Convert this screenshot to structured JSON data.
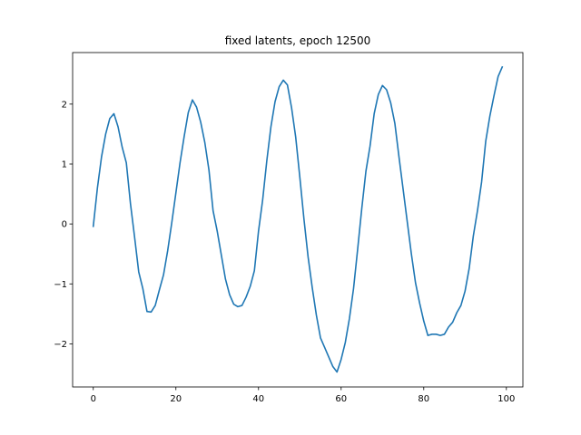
{
  "chart_data": {
    "type": "line",
    "title": "fixed latents, epoch 12500",
    "xlabel": "",
    "ylabel": "",
    "xlim": [
      -5,
      104
    ],
    "ylim": [
      -2.72,
      2.86
    ],
    "grid": false,
    "x_ticks": [
      0,
      20,
      40,
      60,
      80,
      100
    ],
    "y_ticks": [
      2,
      1,
      0,
      -1,
      -2
    ],
    "x_tick_labels": [
      "0",
      "20",
      "40",
      "60",
      "80",
      "100"
    ],
    "y_tick_labels": [
      "2",
      "1",
      "0",
      "−1",
      "−2"
    ],
    "series": [
      {
        "name": "",
        "color": "#1f77b4",
        "x": [
          0,
          1,
          2,
          3,
          4,
          5,
          6,
          7,
          8,
          9,
          10,
          11,
          12,
          13,
          14,
          15,
          16,
          17,
          18,
          19,
          20,
          21,
          22,
          23,
          24,
          25,
          26,
          27,
          28,
          29,
          30,
          31,
          32,
          33,
          34,
          35,
          36,
          37,
          38,
          39,
          40,
          41,
          42,
          43,
          44,
          45,
          46,
          47,
          48,
          49,
          50,
          51,
          52,
          53,
          54,
          55,
          56,
          57,
          58,
          59,
          60,
          61,
          62,
          63,
          64,
          65,
          66,
          67,
          68,
          69,
          70,
          71,
          72,
          73,
          74,
          75,
          76,
          77,
          78,
          79,
          80,
          81,
          82,
          83,
          84,
          85,
          86,
          87,
          88,
          89,
          90,
          91,
          92,
          93,
          94,
          95,
          96,
          97,
          98,
          99
        ],
        "values": [
          -0.04,
          0.6,
          1.12,
          1.5,
          1.76,
          1.84,
          1.62,
          1.28,
          1.02,
          0.34,
          -0.22,
          -0.8,
          -1.08,
          -1.46,
          -1.47,
          -1.36,
          -1.1,
          -0.85,
          -0.45,
          0.02,
          0.52,
          1.02,
          1.46,
          1.86,
          2.07,
          1.95,
          1.7,
          1.36,
          0.9,
          0.22,
          -0.12,
          -0.52,
          -0.92,
          -1.18,
          -1.34,
          -1.38,
          -1.36,
          -1.22,
          -1.04,
          -0.78,
          -0.12,
          0.4,
          1.05,
          1.62,
          2.04,
          2.29,
          2.4,
          2.32,
          1.94,
          1.45,
          0.78,
          0.08,
          -0.55,
          -1.06,
          -1.52,
          -1.9,
          -2.06,
          -2.22,
          -2.38,
          -2.47,
          -2.26,
          -1.98,
          -1.58,
          -1.08,
          -0.42,
          0.26,
          0.88,
          1.3,
          1.84,
          2.16,
          2.31,
          2.24,
          2.02,
          1.68,
          1.12,
          0.58,
          0.04,
          -0.5,
          -0.98,
          -1.32,
          -1.62,
          -1.86,
          -1.84,
          -1.84,
          -1.86,
          -1.84,
          -1.72,
          -1.64,
          -1.48,
          -1.36,
          -1.12,
          -0.74,
          -0.2,
          0.22,
          0.7,
          1.38,
          1.8,
          2.14,
          2.46,
          2.62
        ]
      }
    ]
  }
}
